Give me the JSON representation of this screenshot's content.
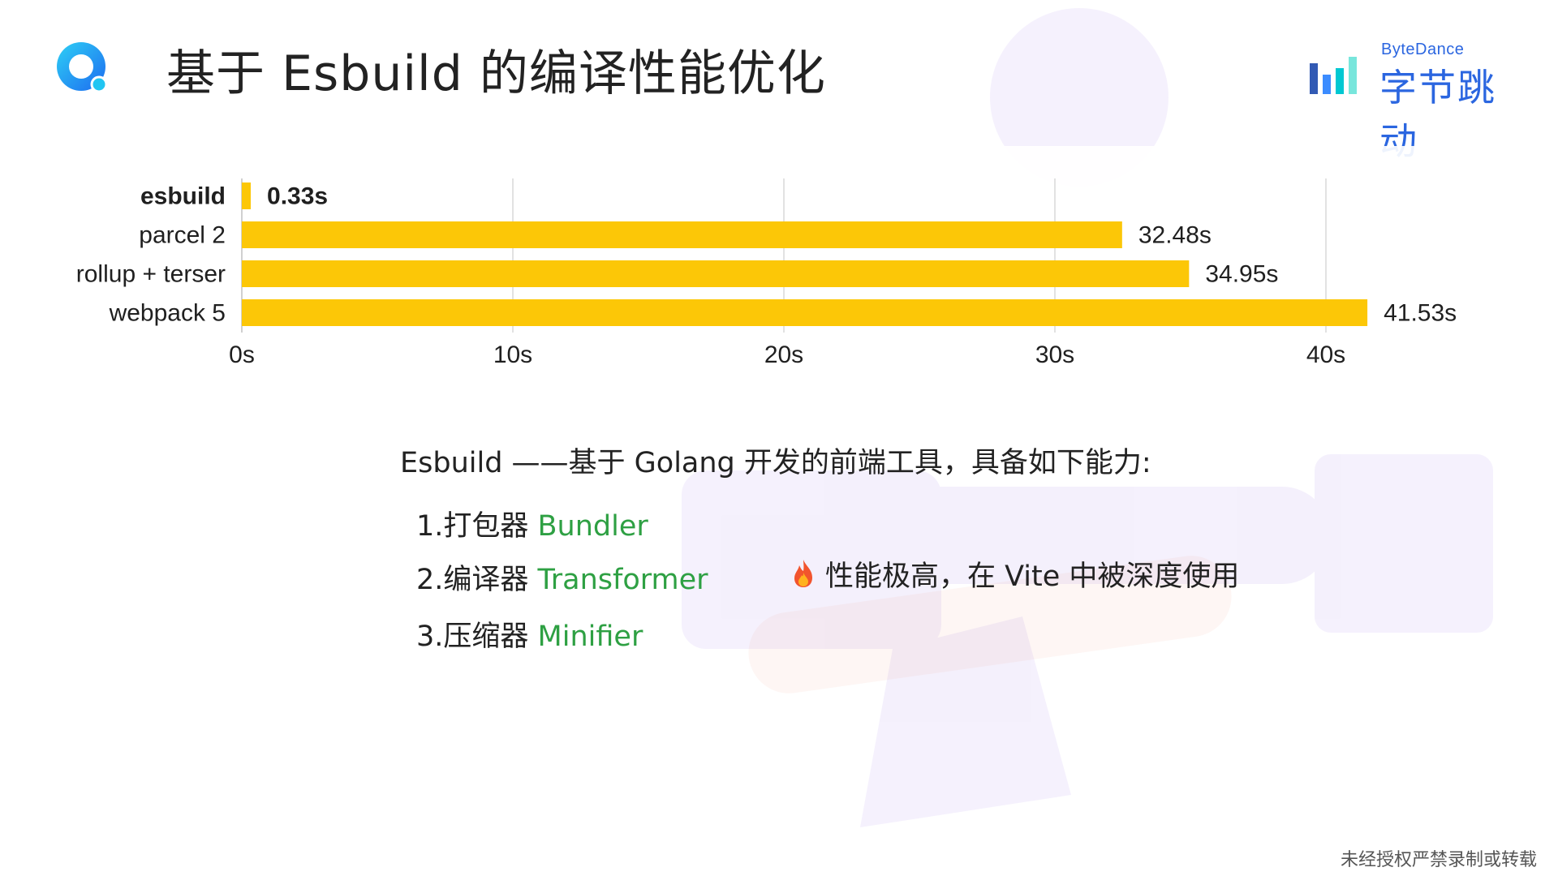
{
  "slide": {
    "title": "基于 Esbuild 的编译性能优化",
    "watermark": "未经授权严禁录制或转载"
  },
  "brand": {
    "en": "ByteDance",
    "cn": "字节跳动",
    "color": "#2b66e0"
  },
  "chart_data": {
    "type": "bar",
    "orientation": "horizontal",
    "categories": [
      "esbuild",
      "parcel 2",
      "rollup + terser",
      "webpack 5"
    ],
    "values": [
      0.33,
      32.48,
      34.95,
      41.53
    ],
    "value_labels": [
      "0.33s",
      "32.48s",
      "34.95s",
      "41.53s"
    ],
    "highlight_category": "esbuild",
    "bar_color": "#fcc707",
    "x_ticks": [
      "0s",
      "10s",
      "20s",
      "30s",
      "40s"
    ],
    "xlim": [
      0,
      40
    ],
    "grid": true,
    "title": "",
    "xlabel": "",
    "ylabel": ""
  },
  "description": "Esbuild ——基于 Golang 开发的前端工具，具备如下能力:",
  "features": [
    {
      "num": "1.",
      "cn": "打包器 ",
      "en": "Bundler"
    },
    {
      "num": "2.",
      "cn": "编译器 ",
      "en": "Transformer"
    },
    {
      "num": "3.",
      "cn": "压缩器 ",
      "en": "Minifier"
    }
  ],
  "highlight": {
    "icon": "fire-icon",
    "text": "性能极高，在 Vite 中被深度使用"
  },
  "colors": {
    "accent_green": "#2ea043",
    "text": "#222222"
  }
}
